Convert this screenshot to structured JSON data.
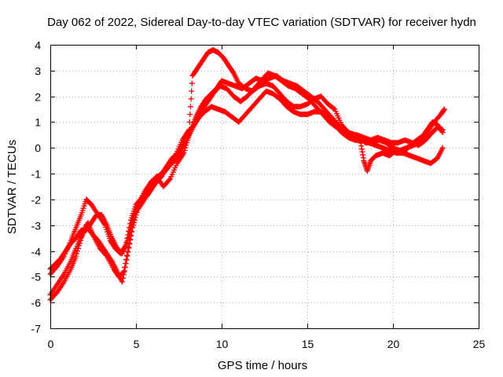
{
  "chart_data": {
    "type": "scatter",
    "title": "Day 062 of 2022, Sidereal Day-to-day VTEC variation (SDTVAR) for receiver hydn",
    "xlabel": "GPS time / hours",
    "ylabel": "SDTVAR / TECUs",
    "xlim": [
      0,
      25
    ],
    "ylim": [
      -7,
      4
    ],
    "xticks": [
      0,
      5,
      10,
      15,
      20,
      25
    ],
    "yticks": [
      -7,
      -6,
      -5,
      -4,
      -3,
      -2,
      -1,
      0,
      1,
      2,
      3,
      4
    ],
    "grid": true,
    "marker": "+",
    "series": [
      {
        "name": "track-1",
        "color": "#ff0000",
        "points": [
          [
            0.0,
            -5.9
          ],
          [
            0.4,
            -5.6
          ],
          [
            0.8,
            -5.2
          ],
          [
            1.2,
            -4.7
          ],
          [
            1.5,
            -4.2
          ],
          [
            1.8,
            -3.5
          ],
          [
            2.1,
            -3.0
          ],
          [
            2.4,
            -3.3
          ],
          [
            2.8,
            -3.6
          ],
          [
            3.2,
            -4.0
          ],
          [
            3.6,
            -4.4
          ],
          [
            3.9,
            -4.8
          ],
          [
            4.2,
            -5.2
          ],
          [
            4.5,
            -4.2
          ],
          [
            4.8,
            -3.1
          ],
          [
            5.1,
            -2.4
          ],
          [
            5.5,
            -2.0
          ],
          [
            5.9,
            -1.6
          ],
          [
            6.3,
            -1.2
          ],
          [
            6.7,
            -0.8
          ],
          [
            7.1,
            -0.4
          ],
          [
            7.6,
            -0.1
          ],
          [
            8.0,
            0.6
          ],
          [
            8.4,
            0.9
          ],
          [
            8.7,
            1.2
          ],
          [
            9.0,
            1.4
          ],
          [
            9.4,
            1.6
          ],
          [
            9.8,
            1.5
          ],
          [
            10.2,
            1.4
          ],
          [
            10.6,
            1.2
          ],
          [
            11.0,
            1.0
          ],
          [
            11.4,
            1.3
          ],
          [
            11.8,
            1.6
          ],
          [
            12.2,
            1.9
          ],
          [
            12.6,
            2.2
          ],
          [
            13.0,
            2.1
          ],
          [
            13.4,
            1.9
          ],
          [
            13.8,
            1.6
          ],
          [
            14.2,
            1.4
          ],
          [
            14.6,
            1.3
          ],
          [
            15.0,
            1.3
          ],
          [
            15.4,
            1.4
          ],
          [
            15.8,
            1.4
          ],
          [
            16.2,
            1.2
          ],
          [
            16.6,
            0.9
          ],
          [
            17.0,
            0.6
          ],
          [
            17.4,
            0.4
          ],
          [
            17.8,
            0.3
          ],
          [
            18.2,
            0.3
          ],
          [
            18.6,
            0.2
          ],
          [
            19.0,
            0.1
          ],
          [
            19.4,
            0.0
          ],
          [
            19.8,
            -0.1
          ],
          [
            20.2,
            -0.2
          ],
          [
            20.6,
            -0.2
          ],
          [
            21.0,
            -0.3
          ],
          [
            21.4,
            -0.4
          ],
          [
            21.8,
            -0.5
          ],
          [
            22.2,
            -0.6
          ],
          [
            22.6,
            -0.4
          ],
          [
            22.9,
            0.0
          ]
        ]
      },
      {
        "name": "track-2",
        "color": "#ff0000",
        "points": [
          [
            0.0,
            -4.9
          ],
          [
            0.4,
            -4.6
          ],
          [
            0.8,
            -4.2
          ],
          [
            1.2,
            -3.6
          ],
          [
            1.5,
            -3.1
          ],
          [
            1.8,
            -2.6
          ],
          [
            2.1,
            -2.0
          ],
          [
            2.4,
            -2.2
          ],
          [
            2.8,
            -2.6
          ],
          [
            3.2,
            -3.0
          ],
          [
            3.5,
            -3.6
          ],
          [
            3.8,
            -3.9
          ],
          [
            4.1,
            -4.1
          ],
          [
            4.4,
            -3.8
          ],
          [
            4.7,
            -2.8
          ],
          [
            5.0,
            -2.2
          ],
          [
            5.4,
            -1.9
          ],
          [
            5.8,
            -1.5
          ],
          [
            6.2,
            -1.1
          ],
          [
            6.6,
            -1.5
          ],
          [
            7.0,
            -1.2
          ],
          [
            7.4,
            -0.6
          ],
          [
            7.8,
            -0.2
          ],
          [
            8.1,
            0.5
          ],
          [
            8.5,
            1.0
          ],
          [
            8.8,
            1.4
          ],
          [
            9.2,
            1.8
          ],
          [
            9.5,
            2.1
          ],
          [
            9.9,
            2.4
          ],
          [
            10.3,
            2.3
          ],
          [
            10.7,
            2.0
          ],
          [
            11.1,
            1.8
          ],
          [
            11.5,
            2.0
          ],
          [
            11.9,
            2.3
          ],
          [
            12.3,
            2.6
          ],
          [
            12.7,
            2.9
          ],
          [
            13.1,
            2.8
          ],
          [
            13.5,
            2.6
          ],
          [
            13.9,
            2.4
          ],
          [
            14.3,
            2.3
          ],
          [
            14.7,
            2.1
          ],
          [
            15.1,
            1.9
          ],
          [
            15.5,
            1.6
          ],
          [
            15.9,
            1.3
          ],
          [
            16.3,
            1.0
          ],
          [
            16.7,
            0.8
          ],
          [
            17.1,
            0.6
          ],
          [
            17.5,
            0.5
          ],
          [
            17.9,
            0.5
          ],
          [
            18.3,
            0.4
          ],
          [
            18.7,
            0.3
          ],
          [
            19.1,
            0.4
          ],
          [
            19.5,
            0.3
          ],
          [
            19.9,
            0.2
          ],
          [
            20.3,
            0.2
          ],
          [
            20.7,
            0.3
          ],
          [
            21.1,
            0.2
          ],
          [
            21.5,
            0.1
          ],
          [
            21.9,
            0.3
          ],
          [
            22.3,
            0.6
          ],
          [
            22.6,
            0.8
          ],
          [
            22.9,
            0.7
          ]
        ]
      },
      {
        "name": "track-3",
        "color": "#ff0000",
        "points": [
          [
            0.0,
            -4.7
          ],
          [
            0.3,
            -4.5
          ],
          [
            0.6,
            -4.3
          ],
          [
            0.9,
            -4.0
          ],
          [
            1.2,
            -3.7
          ],
          [
            1.5,
            -3.5
          ],
          [
            1.8,
            -3.2
          ],
          [
            2.1,
            -3.2
          ],
          [
            2.4,
            -2.9
          ],
          [
            2.7,
            -2.6
          ],
          [
            3.0,
            -2.6
          ],
          [
            3.3,
            -3.0
          ],
          [
            3.6,
            -3.5
          ],
          [
            3.9,
            -3.9
          ],
          [
            4.2,
            -4.1
          ],
          [
            4.5,
            -3.6
          ],
          [
            4.8,
            -2.8
          ],
          [
            5.1,
            -2.2
          ],
          [
            5.5,
            -1.7
          ],
          [
            5.9,
            -1.3
          ],
          [
            6.3,
            -1.1
          ],
          [
            6.7,
            -0.9
          ],
          [
            7.1,
            -0.6
          ],
          [
            7.5,
            -0.3
          ],
          [
            7.9,
            0.2
          ],
          [
            8.3,
            0.8
          ],
          [
            8.5,
            1.2
          ],
          [
            8.8,
            1.6
          ],
          [
            9.1,
            1.9
          ],
          [
            9.4,
            2.1
          ],
          [
            9.7,
            2.3
          ],
          [
            10.0,
            2.6
          ],
          [
            10.4,
            2.5
          ],
          [
            10.8,
            2.4
          ],
          [
            11.2,
            2.3
          ],
          [
            11.6,
            2.5
          ],
          [
            12.0,
            2.7
          ],
          [
            12.4,
            2.6
          ],
          [
            12.8,
            2.7
          ],
          [
            13.2,
            2.8
          ],
          [
            13.6,
            2.6
          ],
          [
            14.0,
            2.5
          ],
          [
            14.4,
            2.4
          ],
          [
            14.8,
            2.2
          ],
          [
            15.2,
            2.0
          ],
          [
            15.6,
            1.8
          ],
          [
            16.0,
            1.5
          ],
          [
            16.4,
            1.2
          ],
          [
            16.8,
            0.9
          ],
          [
            17.2,
            0.6
          ],
          [
            17.6,
            0.5
          ],
          [
            18.0,
            0.4
          ],
          [
            18.4,
            0.2
          ],
          [
            18.8,
            0.2
          ],
          [
            19.2,
            0.3
          ],
          [
            19.6,
            0.2
          ],
          [
            20.0,
            0.0
          ],
          [
            20.4,
            -0.1
          ],
          [
            20.8,
            0.0
          ],
          [
            21.2,
            0.1
          ],
          [
            21.6,
            0.3
          ],
          [
            22.0,
            0.6
          ],
          [
            22.4,
            1.0
          ],
          [
            22.8,
            1.3
          ],
          [
            23.0,
            1.5
          ]
        ]
      },
      {
        "name": "track-4",
        "color": "#ff0000",
        "points": [
          [
            0.0,
            -5.7
          ],
          [
            0.4,
            -5.3
          ],
          [
            0.8,
            -4.9
          ],
          [
            1.2,
            -4.4
          ],
          [
            1.5,
            -3.9
          ],
          [
            1.9,
            -3.3
          ],
          [
            2.2,
            -2.9
          ],
          [
            2.5,
            -3.4
          ],
          [
            2.9,
            -3.9
          ],
          [
            3.3,
            -4.2
          ],
          [
            3.7,
            -4.7
          ],
          [
            4.0,
            -5.0
          ],
          [
            4.3,
            -4.8
          ],
          [
            4.6,
            -3.7
          ],
          [
            4.9,
            -2.6
          ],
          [
            5.3,
            -2.1
          ],
          [
            5.7,
            -1.8
          ],
          [
            6.1,
            -1.4
          ],
          [
            6.5,
            -1.1
          ],
          [
            6.9,
            -0.7
          ],
          [
            7.3,
            -0.3
          ],
          [
            7.7,
            0.3
          ],
          [
            8.1,
            0.7
          ],
          [
            8.3,
            2.8
          ],
          [
            8.6,
            3.1
          ],
          [
            8.9,
            3.4
          ],
          [
            9.2,
            3.7
          ],
          [
            9.5,
            3.8
          ],
          [
            9.8,
            3.7
          ],
          [
            10.1,
            3.5
          ],
          [
            10.4,
            3.2
          ],
          [
            10.7,
            2.9
          ],
          [
            11.0,
            2.5
          ],
          [
            11.4,
            2.3
          ],
          [
            11.8,
            2.2
          ],
          [
            12.2,
            2.4
          ],
          [
            12.6,
            2.5
          ],
          [
            13.0,
            2.4
          ],
          [
            13.4,
            2.1
          ],
          [
            13.8,
            1.8
          ],
          [
            14.2,
            1.6
          ],
          [
            14.6,
            1.6
          ],
          [
            15.0,
            1.7
          ],
          [
            15.4,
            1.9
          ],
          [
            15.8,
            2.0
          ],
          [
            16.2,
            1.7
          ],
          [
            16.6,
            1.5
          ],
          [
            17.0,
            0.9
          ],
          [
            17.4,
            0.6
          ],
          [
            17.8,
            0.5
          ],
          [
            18.1,
            0.3
          ],
          [
            18.3,
            -0.5
          ],
          [
            18.5,
            -0.9
          ],
          [
            18.7,
            -0.5
          ],
          [
            19.0,
            -0.3
          ],
          [
            19.4,
            -0.2
          ],
          [
            19.8,
            -0.3
          ],
          [
            20.2,
            -0.1
          ],
          [
            20.6,
            -0.2
          ],
          [
            21.0,
            0.1
          ],
          [
            21.4,
            0.3
          ],
          [
            21.8,
            0.5
          ],
          [
            22.0,
            0.7
          ],
          [
            22.3,
            1.0
          ],
          [
            22.6,
            0.9
          ],
          [
            22.9,
            0.6
          ]
        ]
      }
    ]
  }
}
